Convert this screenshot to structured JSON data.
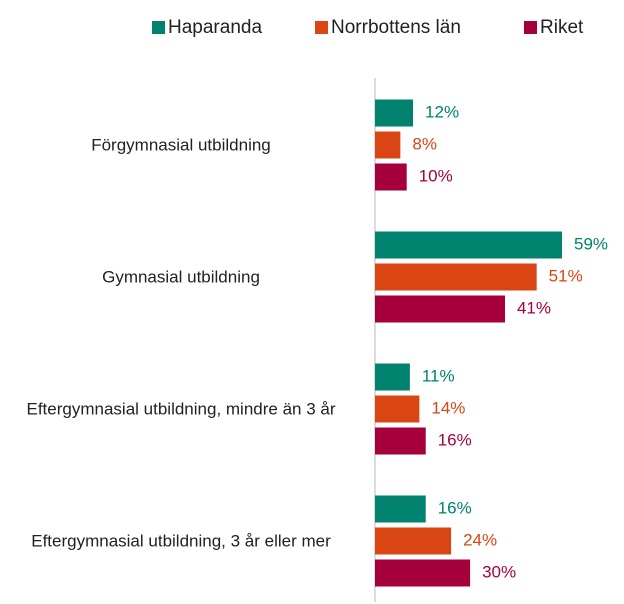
{
  "chart_data": {
    "type": "bar",
    "orientation": "horizontal",
    "categories": [
      "Förgymnasial utbildning",
      "Gymnasial utbildning",
      "Eftergymnasial utbildning, mindre än 3 år",
      "Eftergymnasial utbildning, 3 år eller mer"
    ],
    "series": [
      {
        "name": "Haparanda",
        "color": "#00826e",
        "values": [
          12,
          59,
          11,
          16
        ],
        "value_labels": [
          "12%",
          "59%",
          "11%",
          "16%"
        ]
      },
      {
        "name": "Norrbottens län",
        "color": "#d94513",
        "values": [
          8,
          51,
          14,
          24
        ],
        "value_labels": [
          "8%",
          "51%",
          "14%",
          "24%"
        ]
      },
      {
        "name": "Riket",
        "color": "#a5003c",
        "values": [
          10,
          41,
          16,
          30
        ],
        "value_labels": [
          "10%",
          "41%",
          "16%",
          "30%"
        ]
      }
    ],
    "legend": "top"
  }
}
